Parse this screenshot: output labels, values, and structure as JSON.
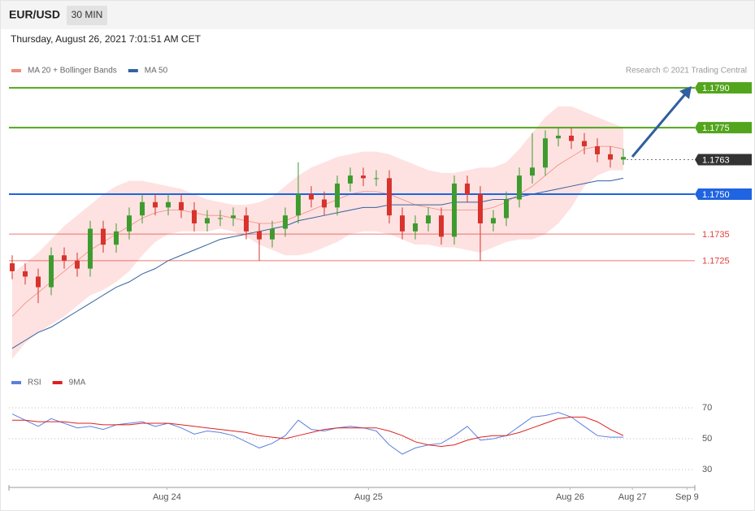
{
  "header": {
    "symbol": "EUR/USD",
    "timeframe": "30 MIN",
    "datetime": "Thursday, August 26, 2021 7:01:51 AM CET"
  },
  "chart_data": [
    {
      "type": "candlestick",
      "source": "Research © 2021 Trading Central",
      "up_color": "#3f9b2f",
      "down_color": "#d8332c",
      "xlim": [
        -0.25,
        52.5
      ],
      "ylim": [
        1.1684,
        1.1794
      ],
      "open": [
        1.1724,
        1.1721,
        1.1719,
        1.1715,
        1.1727,
        1.1725,
        1.1722,
        1.1737,
        1.1731,
        1.1736,
        1.1742,
        1.1747,
        1.1745,
        1.1747,
        1.1744,
        1.1739,
        1.1741,
        1.1741,
        1.1742,
        1.1736,
        1.1733,
        1.1737,
        1.1742,
        1.175,
        1.1748,
        1.1745,
        1.1754,
        1.1757,
        1.1756,
        1.1756,
        1.1742,
        1.1736,
        1.1739,
        1.1742,
        1.1734,
        1.1754,
        1.175,
        1.1739,
        1.1741,
        1.1748,
        1.1757,
        1.176,
        1.1771,
        1.1772,
        1.177,
        1.1768,
        1.1765,
        1.1763
      ],
      "high": [
        1.1727,
        1.1724,
        1.1722,
        1.173,
        1.173,
        1.1728,
        1.174,
        1.174,
        1.1739,
        1.1745,
        1.175,
        1.175,
        1.175,
        1.175,
        1.1747,
        1.1744,
        1.1744,
        1.1745,
        1.1745,
        1.1739,
        1.174,
        1.1745,
        1.1762,
        1.1753,
        1.1751,
        1.1757,
        1.176,
        1.176,
        1.1759,
        1.1759,
        1.1745,
        1.1742,
        1.1745,
        1.1745,
        1.1757,
        1.1757,
        1.1753,
        1.1744,
        1.1751,
        1.176,
        1.1773,
        1.1774,
        1.1775,
        1.1775,
        1.1773,
        1.1771,
        1.1768,
        1.1767
      ],
      "low": [
        1.1718,
        1.1716,
        1.1709,
        1.1712,
        1.1722,
        1.1719,
        1.1719,
        1.1728,
        1.1728,
        1.1733,
        1.1739,
        1.1742,
        1.1742,
        1.1741,
        1.1736,
        1.1736,
        1.1738,
        1.1738,
        1.1733,
        1.1725,
        1.173,
        1.1734,
        1.1739,
        1.1745,
        1.1742,
        1.1742,
        1.1751,
        1.1753,
        1.1753,
        1.1739,
        1.1733,
        1.1733,
        1.1736,
        1.1731,
        1.1731,
        1.1747,
        1.1725,
        1.1736,
        1.1738,
        1.1745,
        1.1754,
        1.1757,
        1.1768,
        1.1767,
        1.1765,
        1.1762,
        1.176,
        1.1761
      ],
      "close": [
        1.1721,
        1.1719,
        1.1715,
        1.1727,
        1.1725,
        1.1722,
        1.1737,
        1.1731,
        1.1736,
        1.1742,
        1.1747,
        1.1745,
        1.1747,
        1.1744,
        1.1739,
        1.1741,
        1.1741,
        1.1742,
        1.1736,
        1.1733,
        1.1737,
        1.1742,
        1.175,
        1.1748,
        1.1745,
        1.1754,
        1.1757,
        1.1756,
        1.1756,
        1.1742,
        1.1736,
        1.1739,
        1.1742,
        1.1734,
        1.1754,
        1.175,
        1.1739,
        1.1741,
        1.1748,
        1.1757,
        1.176,
        1.1771,
        1.1772,
        1.177,
        1.1768,
        1.1765,
        1.1763,
        1.1764
      ],
      "series": [
        {
          "name": "MA 20 + Bollinger Bands",
          "color": "#f28b82",
          "band_color": "#fde2e1",
          "values": [
            1.1704,
            1.1709,
            1.1713,
            1.1717,
            1.1721,
            1.1725,
            1.1729,
            1.1732,
            1.1735,
            1.1738,
            1.1741,
            1.1743,
            1.1744,
            1.1744,
            1.1743,
            1.1742,
            1.1742,
            1.1741,
            1.174,
            1.1739,
            1.1739,
            1.174,
            1.1742,
            1.1744,
            1.1746,
            1.1748,
            1.175,
            1.1751,
            1.1751,
            1.175,
            1.1748,
            1.1746,
            1.1745,
            1.1744,
            1.1744,
            1.1744,
            1.1744,
            1.1745,
            1.1747,
            1.175,
            1.1753,
            1.1757,
            1.1761,
            1.1764,
            1.1767,
            1.1768,
            1.1768,
            1.1767
          ],
          "upper": [
            1.172,
            1.1724,
            1.1728,
            1.1733,
            1.1738,
            1.1742,
            1.1746,
            1.175,
            1.1753,
            1.1755,
            1.1755,
            1.1754,
            1.1753,
            1.1752,
            1.175,
            1.1748,
            1.1747,
            1.1746,
            1.1746,
            1.1747,
            1.1749,
            1.1753,
            1.1757,
            1.176,
            1.1762,
            1.1764,
            1.1765,
            1.1766,
            1.1766,
            1.1765,
            1.1763,
            1.1761,
            1.1759,
            1.1758,
            1.1758,
            1.1759,
            1.176,
            1.176,
            1.1762,
            1.1767,
            1.1773,
            1.1779,
            1.1783,
            1.1783,
            1.1781,
            1.1779,
            1.1777,
            1.1775
          ],
          "lower": [
            1.1688,
            1.1694,
            1.1698,
            1.1701,
            1.1704,
            1.1708,
            1.1712,
            1.1714,
            1.1717,
            1.1721,
            1.1727,
            1.1732,
            1.1735,
            1.1736,
            1.1736,
            1.1736,
            1.1737,
            1.1736,
            1.1734,
            1.1731,
            1.1729,
            1.1727,
            1.1727,
            1.1728,
            1.173,
            1.1732,
            1.1735,
            1.1736,
            1.1736,
            1.1735,
            1.1733,
            1.1731,
            1.1731,
            1.173,
            1.173,
            1.1729,
            1.1728,
            1.173,
            1.1732,
            1.1733,
            1.1733,
            1.1735,
            1.1739,
            1.1745,
            1.1753,
            1.1757,
            1.1759,
            1.1759
          ]
        },
        {
          "name": "MA 50",
          "color": "#34629e",
          "values": [
            1.1692,
            1.1695,
            1.1698,
            1.17,
            1.1703,
            1.1706,
            1.1709,
            1.1712,
            1.1715,
            1.1717,
            1.172,
            1.1722,
            1.1725,
            1.1727,
            1.1729,
            1.1731,
            1.1733,
            1.1734,
            1.1735,
            1.1736,
            1.1737,
            1.1738,
            1.174,
            1.1741,
            1.1742,
            1.1743,
            1.1744,
            1.1745,
            1.1745,
            1.1746,
            1.1746,
            1.1746,
            1.1746,
            1.1746,
            1.1747,
            1.1747,
            1.1747,
            1.1748,
            1.1748,
            1.1749,
            1.175,
            1.1751,
            1.1752,
            1.1753,
            1.1754,
            1.1755,
            1.1755,
            1.1756
          ]
        }
      ],
      "levels": [
        {
          "value": 1.179,
          "label": "1.1790",
          "color": "#52a51c",
          "boxed": true,
          "style": "solid"
        },
        {
          "value": 1.1775,
          "label": "1.1775",
          "color": "#52a51c",
          "boxed": true,
          "style": "solid"
        },
        {
          "value": 1.1763,
          "label": "1.1763",
          "color": "#333333",
          "boxed": true,
          "style": "dotted"
        },
        {
          "value": 1.175,
          "label": "1.1750",
          "color": "#1f64e0",
          "boxed": true,
          "style": "solid"
        },
        {
          "value": 1.1735,
          "label": "1.1735",
          "color": "#e0413b",
          "boxed": false,
          "style": "solid"
        },
        {
          "value": 1.1725,
          "label": "1.1725",
          "color": "#e0413b",
          "boxed": false,
          "style": "solid"
        }
      ]
    },
    {
      "type": "line",
      "xlim": [
        -0.25,
        52.5
      ],
      "ylim": [
        25,
        75
      ],
      "yticks": [
        30,
        50,
        70
      ],
      "xticks": [
        {
          "value": 11.9,
          "label": "Aug 24"
        },
        {
          "value": 27.4,
          "label": "Aug 25"
        },
        {
          "value": 42.9,
          "label": "Aug 26"
        },
        {
          "value": 47.7,
          "label": "Aug 27"
        },
        {
          "value": 51.9,
          "label": "Sep 9"
        }
      ],
      "series": [
        {
          "name": "RSI",
          "color": "#5b80de",
          "values": [
            66,
            62,
            58,
            63,
            60,
            57,
            58,
            56,
            59,
            60,
            61,
            58,
            60,
            57,
            53,
            55,
            54,
            52,
            48,
            44,
            47,
            52,
            62,
            56,
            55,
            57,
            58,
            57,
            55,
            46,
            40,
            44,
            46,
            47,
            52,
            58,
            49,
            50,
            52,
            58,
            64,
            65,
            67,
            64,
            58,
            52,
            51,
            51
          ]
        },
        {
          "name": "9MA",
          "color": "#e02020",
          "values": [
            62,
            62,
            61,
            61,
            61,
            60,
            60,
            59,
            59,
            59,
            60,
            60,
            60,
            59,
            58,
            57,
            56,
            55,
            54,
            52,
            51,
            50,
            52,
            54,
            56,
            57,
            57,
            57,
            57,
            55,
            52,
            48,
            46,
            45,
            46,
            49,
            51,
            52,
            52,
            54,
            57,
            60,
            63,
            64,
            64,
            61,
            56,
            52
          ]
        }
      ]
    }
  ]
}
